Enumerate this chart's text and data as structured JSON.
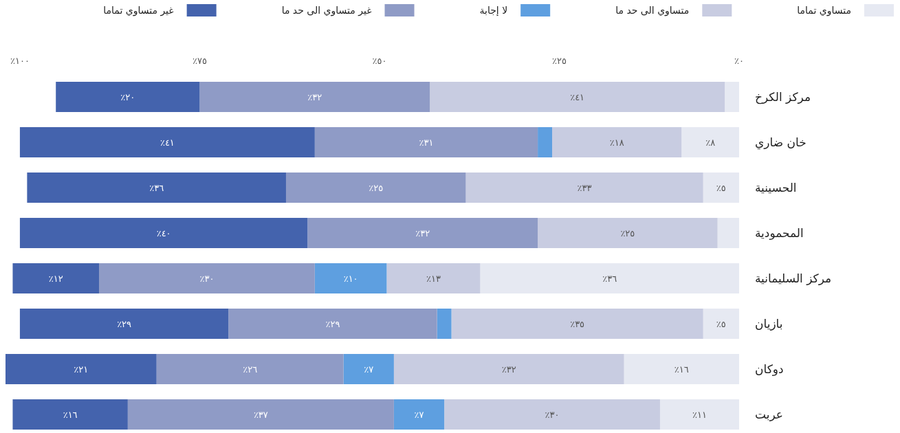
{
  "chart_data": {
    "type": "bar",
    "orientation": "horizontal",
    "stacked": true,
    "legend": "top",
    "categories": [
      "مركز الكرخ",
      "خان ضاري",
      "الحسينية",
      "المحمودية",
      "مركز السليمانية",
      "بازيان",
      "دوكان",
      "عربت"
    ],
    "xlim": [
      102,
      0
    ],
    "xticks": [
      {
        "value": 100,
        "label": "٪١٠٠"
      },
      {
        "value": 75,
        "label": "٪٧٥"
      },
      {
        "value": 50,
        "label": "٪٥٠"
      },
      {
        "value": 25,
        "label": "٪٢٥"
      },
      {
        "value": 0,
        "label": "٪٠"
      }
    ],
    "series": [
      {
        "name": "متساوي تماما",
        "color": "#e6e9f2",
        "values": [
          2,
          8,
          5,
          3,
          36,
          5,
          16,
          11
        ],
        "value_labels": [
          null,
          "٪٨",
          "٪٥",
          null,
          "٪٣٦",
          "٪٥",
          "٪١٦",
          "٪١١"
        ]
      },
      {
        "name": "متساوي الى حد ما",
        "color": "#c8cce1",
        "values": [
          41,
          18,
          33,
          25,
          13,
          35,
          32,
          30
        ],
        "value_labels": [
          "٪٤١",
          "٪١٨",
          "٪٣٣",
          "٪٢٥",
          "٪١٣",
          "٪٣٥",
          "٪٣٢",
          "٪٣٠"
        ]
      },
      {
        "name": "لا إجابة",
        "color": "#5e9fe0",
        "values": [
          0,
          2,
          0,
          0,
          10,
          2,
          7,
          7
        ],
        "value_labels": [
          null,
          null,
          null,
          null,
          "٪١٠",
          null,
          "٪٧",
          "٪٧"
        ]
      },
      {
        "name": "غير متساوي الى حد ما",
        "color": "#8f9bc6",
        "values": [
          32,
          31,
          25,
          32,
          30,
          29,
          26,
          37
        ],
        "value_labels": [
          "٪٣٢",
          "٪٣١",
          "٪٢٥",
          "٪٣٢",
          "٪٣٠",
          "٪٢٩",
          "٪٢٦",
          "٪٣٧"
        ]
      },
      {
        "name": "غير متساوي تماما",
        "color": "#4463ad",
        "values": [
          20,
          41,
          36,
          40,
          12,
          29,
          21,
          16
        ],
        "value_labels": [
          "٪٢٠",
          "٪٤١",
          "٪٣٦",
          "٪٤٠",
          "٪١٢",
          "٪٢٩",
          "٪٢١",
          "٪١٦"
        ]
      }
    ]
  }
}
